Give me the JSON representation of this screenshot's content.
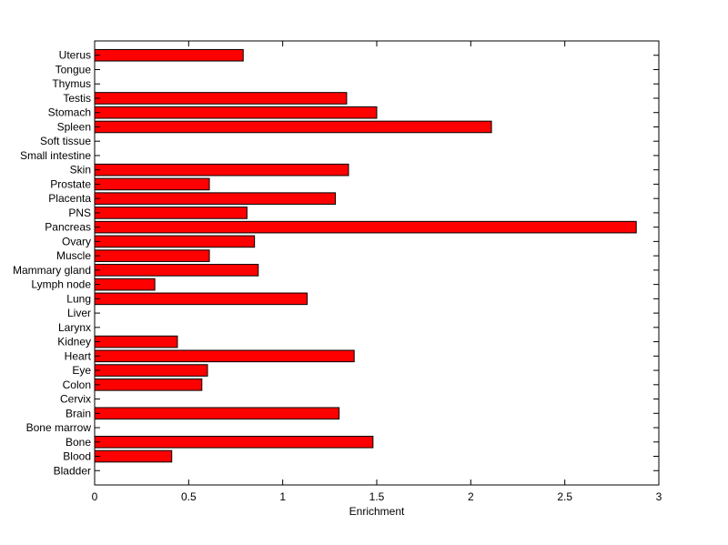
{
  "chart_data": {
    "type": "bar",
    "orientation": "horizontal",
    "categories": [
      "Bladder",
      "Blood",
      "Bone",
      "Bone marrow",
      "Brain",
      "Cervix",
      "Colon",
      "Eye",
      "Heart",
      "Kidney",
      "Larynx",
      "Liver",
      "Lung",
      "Lymph node",
      "Mammary gland",
      "Muscle",
      "Ovary",
      "Pancreas",
      "PNS",
      "Placenta",
      "Prostate",
      "Skin",
      "Small intestine",
      "Soft tissue",
      "Spleen",
      "Stomach",
      "Testis",
      "Thymus",
      "Tongue",
      "Uterus"
    ],
    "values": [
      0,
      0.41,
      1.48,
      0,
      1.3,
      0,
      0.57,
      0.6,
      1.38,
      0.44,
      0,
      0,
      1.13,
      0.32,
      0.87,
      0.61,
      0.85,
      2.88,
      0.81,
      1.28,
      0.61,
      1.35,
      0,
      0,
      2.11,
      1.5,
      1.34,
      0,
      0,
      0.79
    ],
    "title": "",
    "xlabel": "Enrichment",
    "ylabel": "",
    "xlim": [
      0,
      3
    ],
    "xticks": [
      0,
      0.5,
      1,
      1.5,
      2,
      2.5,
      3
    ],
    "xtick_labels": [
      "0",
      "0.5",
      "1",
      "1.5",
      "2",
      "2.5",
      "3"
    ],
    "bar_color": "#ff0000",
    "edge_color": "#000000",
    "grid": false
  }
}
